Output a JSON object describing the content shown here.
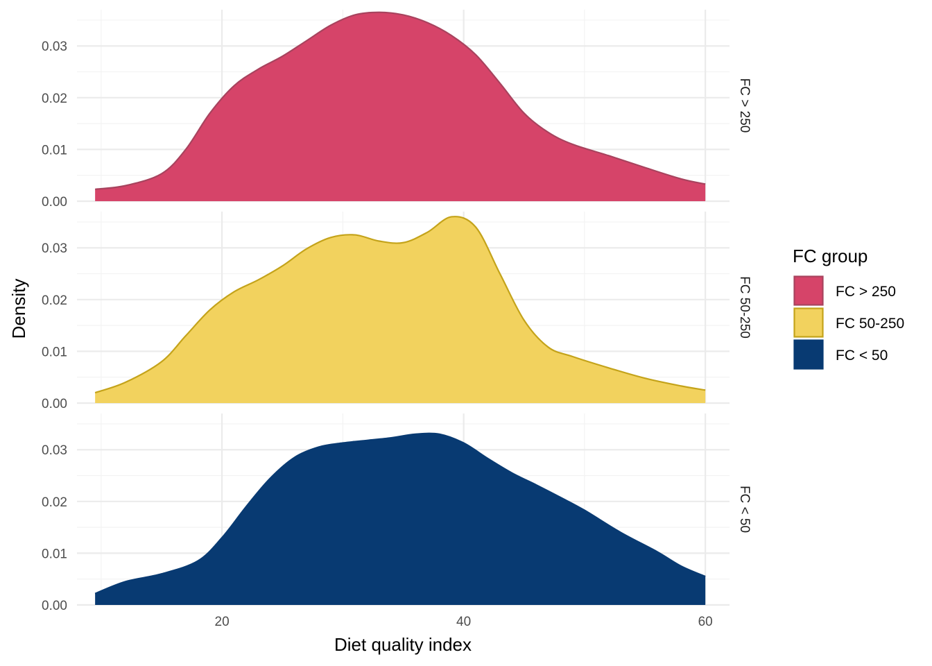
{
  "chart_data": {
    "type": "area",
    "subtype": "faceted-density",
    "xlabel": "Diet quality index",
    "ylabel": "Density",
    "xlim": [
      8,
      62
    ],
    "ylim": [
      0,
      0.037
    ],
    "x_ticks": [
      20,
      40,
      60
    ],
    "x_tick_labels": [
      "20",
      "40",
      "60"
    ],
    "x_minor_ticks": [
      10,
      30,
      50
    ],
    "y_ticks": [
      0,
      0.01,
      0.02,
      0.03
    ],
    "y_tick_labels": [
      "0.00",
      "0.01",
      "0.02",
      "0.03"
    ],
    "y_minor_ticks": [
      0.005,
      0.015,
      0.025,
      0.035
    ],
    "grid": true,
    "legend": {
      "title": "FC group",
      "position": "right"
    },
    "series": [
      {
        "name": "FC > 250",
        "strip": "FC > 250",
        "fill": "#D64469",
        "stroke": "#A8435E",
        "x": [
          9.5,
          12,
          15,
          17,
          19,
          21,
          23,
          25,
          27,
          29,
          31,
          33,
          35,
          37,
          39,
          41,
          43,
          45,
          47,
          49,
          52,
          55,
          58,
          60
        ],
        "y": [
          0.0023,
          0.003,
          0.0053,
          0.01,
          0.017,
          0.0223,
          0.0255,
          0.028,
          0.031,
          0.034,
          0.036,
          0.0365,
          0.036,
          0.0345,
          0.032,
          0.0283,
          0.0228,
          0.017,
          0.0133,
          0.011,
          0.0088,
          0.0065,
          0.0043,
          0.0033
        ]
      },
      {
        "name": "FC 50-250",
        "strip": "FC 50-250",
        "fill": "#F2D25E",
        "stroke": "#C4A31A",
        "x": [
          9.5,
          12,
          15,
          17,
          19,
          21,
          23,
          25,
          27,
          29,
          31,
          33,
          35,
          37,
          39,
          41,
          43,
          45,
          47,
          49,
          52,
          55,
          58,
          60
        ],
        "y": [
          0.002,
          0.004,
          0.008,
          0.013,
          0.018,
          0.0215,
          0.0238,
          0.0265,
          0.0298,
          0.032,
          0.0325,
          0.0313,
          0.031,
          0.033,
          0.036,
          0.034,
          0.025,
          0.016,
          0.0108,
          0.009,
          0.0068,
          0.0048,
          0.0033,
          0.0025
        ]
      },
      {
        "name": "FC < 50",
        "strip": "FC < 50",
        "fill": "#083A72",
        "stroke": "#083A72",
        "x": [
          9.5,
          12,
          15,
          18,
          20,
          22,
          24,
          26,
          28,
          30,
          32,
          34,
          36,
          38,
          40,
          42,
          44,
          46,
          48,
          50,
          53,
          56,
          58,
          60
        ],
        "y": [
          0.0022,
          0.0045,
          0.006,
          0.0085,
          0.013,
          0.019,
          0.0245,
          0.0285,
          0.0305,
          0.0313,
          0.0318,
          0.0323,
          0.033,
          0.033,
          0.0313,
          0.0283,
          0.0255,
          0.0232,
          0.0208,
          0.0183,
          0.014,
          0.0103,
          0.0075,
          0.0055
        ]
      }
    ]
  }
}
